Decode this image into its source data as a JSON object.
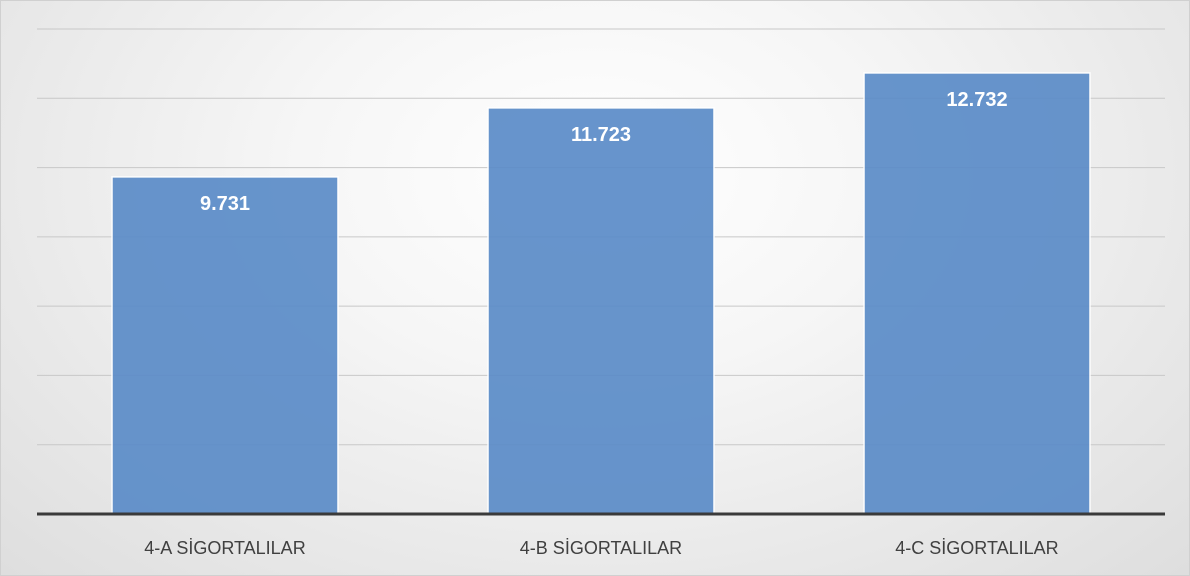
{
  "chart_data": {
    "type": "bar",
    "categories": [
      "4-A SİGORTALILAR",
      "4-B SİGORTALILAR",
      "4-C SİGORTALILAR"
    ],
    "values": [
      9731,
      11723,
      12732
    ],
    "data_labels": [
      "9.731",
      "11.723",
      "12.732"
    ],
    "title": "",
    "xlabel": "",
    "ylabel": "",
    "ylim": [
      0,
      14000
    ],
    "y_gridline_step": 2000,
    "grid": true,
    "legend": "none",
    "bar_color": "#5b8cc8",
    "axis_color": "#3a3a3a"
  }
}
